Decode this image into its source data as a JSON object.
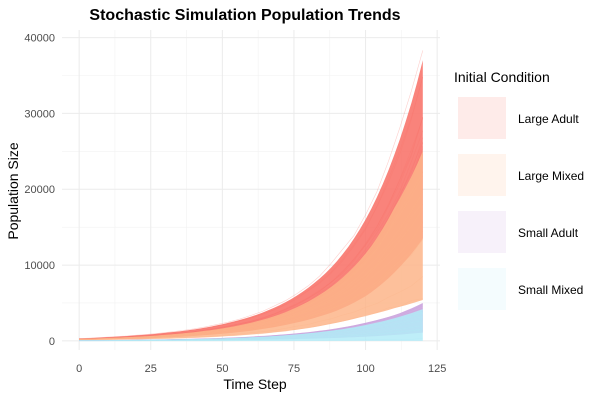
{
  "chart_data": {
    "type": "area",
    "title": "Stochastic Simulation Population Trends",
    "xlabel": "Time Step",
    "ylabel": "Population Size",
    "xlim": [
      -6,
      126
    ],
    "ylim": [
      -1200,
      41000
    ],
    "x_ticks": [
      0,
      25,
      50,
      75,
      100,
      125
    ],
    "y_ticks": [
      0,
      10000,
      20000,
      30000,
      40000
    ],
    "grid": true,
    "legend_placement": "right",
    "legend_title": "Initial Condition",
    "time_range": [
      0,
      120
    ],
    "series": [
      {
        "name": "Large Adult",
        "color": "#F8766D",
        "x": [
          0,
          10,
          20,
          30,
          40,
          50,
          60,
          70,
          80,
          90,
          100,
          110,
          120
        ],
        "low": [
          150,
          220,
          320,
          460,
          660,
          950,
          1350,
          1950,
          2800,
          4000,
          5900,
          9000,
          13500
        ],
        "high": [
          300,
          480,
          720,
          1050,
          1500,
          2200,
          3200,
          4700,
          7000,
          10500,
          16000,
          24500,
          37000
        ]
      },
      {
        "name": "Large Mixed",
        "color": "#FDB589",
        "x": [
          0,
          10,
          20,
          30,
          40,
          50,
          60,
          70,
          80,
          90,
          100,
          110,
          120
        ],
        "low": [
          120,
          160,
          220,
          300,
          420,
          600,
          850,
          1200,
          1700,
          2400,
          3300,
          4300,
          5400
        ],
        "high": [
          250,
          380,
          550,
          800,
          1150,
          1650,
          2400,
          3500,
          5200,
          7700,
          11500,
          17500,
          25000
        ]
      },
      {
        "name": "Small Adult",
        "color": "#C9A0DC",
        "x": [
          0,
          10,
          20,
          30,
          40,
          50,
          60,
          70,
          80,
          90,
          100,
          110,
          120
        ],
        "low": [
          20,
          30,
          40,
          60,
          80,
          110,
          150,
          210,
          290,
          400,
          560,
          780,
          1100
        ],
        "high": [
          50,
          80,
          120,
          180,
          260,
          380,
          550,
          800,
          1150,
          1650,
          2400,
          3400,
          5000
        ]
      },
      {
        "name": "Small Mixed",
        "color": "#B3EBF7",
        "x": [
          0,
          10,
          20,
          30,
          40,
          50,
          60,
          70,
          80,
          90,
          100,
          110,
          120
        ],
        "low": [
          0,
          0,
          0,
          0,
          0,
          0,
          0,
          0,
          0,
          0,
          0,
          0,
          0
        ],
        "high": [
          40,
          60,
          100,
          150,
          220,
          320,
          470,
          680,
          1000,
          1450,
          2100,
          3000,
          4200
        ]
      }
    ]
  }
}
